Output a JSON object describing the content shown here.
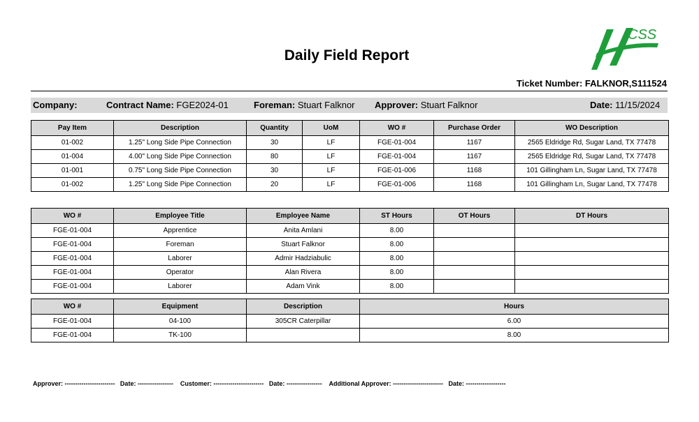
{
  "title": "Daily Field Report",
  "logo_text": "HCSS",
  "brand_color": "#1e9e3a",
  "ticket": "Ticket Number: FALKNOR,S111524",
  "info": {
    "company_label": "Company:",
    "contract_label": "Contract Name:",
    "contract": "FGE2024-01",
    "foreman_label": "Foreman:",
    "foreman": "Stuart Falknor",
    "approver_label": "Approver:",
    "approver": "Stuart Falknor",
    "date_label": "Date:",
    "date": "11/15/2024"
  },
  "items": {
    "headers": [
      "Pay Item",
      "Description",
      "Quantity",
      "UoM",
      "WO #",
      "Purchase Order",
      "WO Description"
    ],
    "rows": [
      [
        "01-002",
        "1.25\" Long Side Pipe Connection",
        "30",
        "LF",
        "FGE-01-004",
        "1167",
        "2565 Eldridge Rd, Sugar Land, TX 77478"
      ],
      [
        "01-004",
        "4.00\" Long Side Pipe Connection",
        "80",
        "LF",
        "FGE-01-004",
        "1167",
        "2565 Eldridge Rd, Sugar Land, TX 77478"
      ],
      [
        "01-001",
        "0.75\" Long Side Pipe Connection",
        "30",
        "LF",
        "FGE-01-006",
        "1168",
        "101 Gillingham Ln, Sugar Land, TX 77478"
      ],
      [
        "01-002",
        "1.25\" Long Side Pipe Connection",
        "20",
        "LF",
        "FGE-01-006",
        "1168",
        "101 Gillingham Ln, Sugar Land, TX 77478"
      ]
    ]
  },
  "labor": {
    "headers": [
      "WO #",
      "Employee Title",
      "Employee Name",
      "ST Hours",
      "OT Hours",
      "DT Hours"
    ],
    "rows": [
      [
        "FGE-01-004",
        "Apprentice",
        "Anita Amlani",
        "8.00",
        "",
        ""
      ],
      [
        "FGE-01-004",
        "Foreman",
        "Stuart Falknor",
        "8.00",
        "",
        ""
      ],
      [
        "FGE-01-004",
        "Laborer",
        "Admir Hadziabulic",
        "8.00",
        "",
        ""
      ],
      [
        "FGE-01-004",
        "Operator",
        "Alan Rivera",
        "8.00",
        "",
        ""
      ],
      [
        "FGE-01-004",
        "Laborer",
        "Adam Vink",
        "8.00",
        "",
        ""
      ]
    ]
  },
  "equipment": {
    "headers": [
      "WO #",
      "Equipment",
      "Description",
      "Hours"
    ],
    "rows": [
      [
        "FGE-01-004",
        "04-100",
        "305CR Caterpillar",
        "6.00"
      ],
      [
        "FGE-01-004",
        "TK-100",
        "",
        "8.00"
      ]
    ]
  },
  "signatures": "Approver: ------------------------   Date: -----------------    Customer: ------------------------   Date: -----------------    Additional Approver: ------------------------   Date: -------------------"
}
